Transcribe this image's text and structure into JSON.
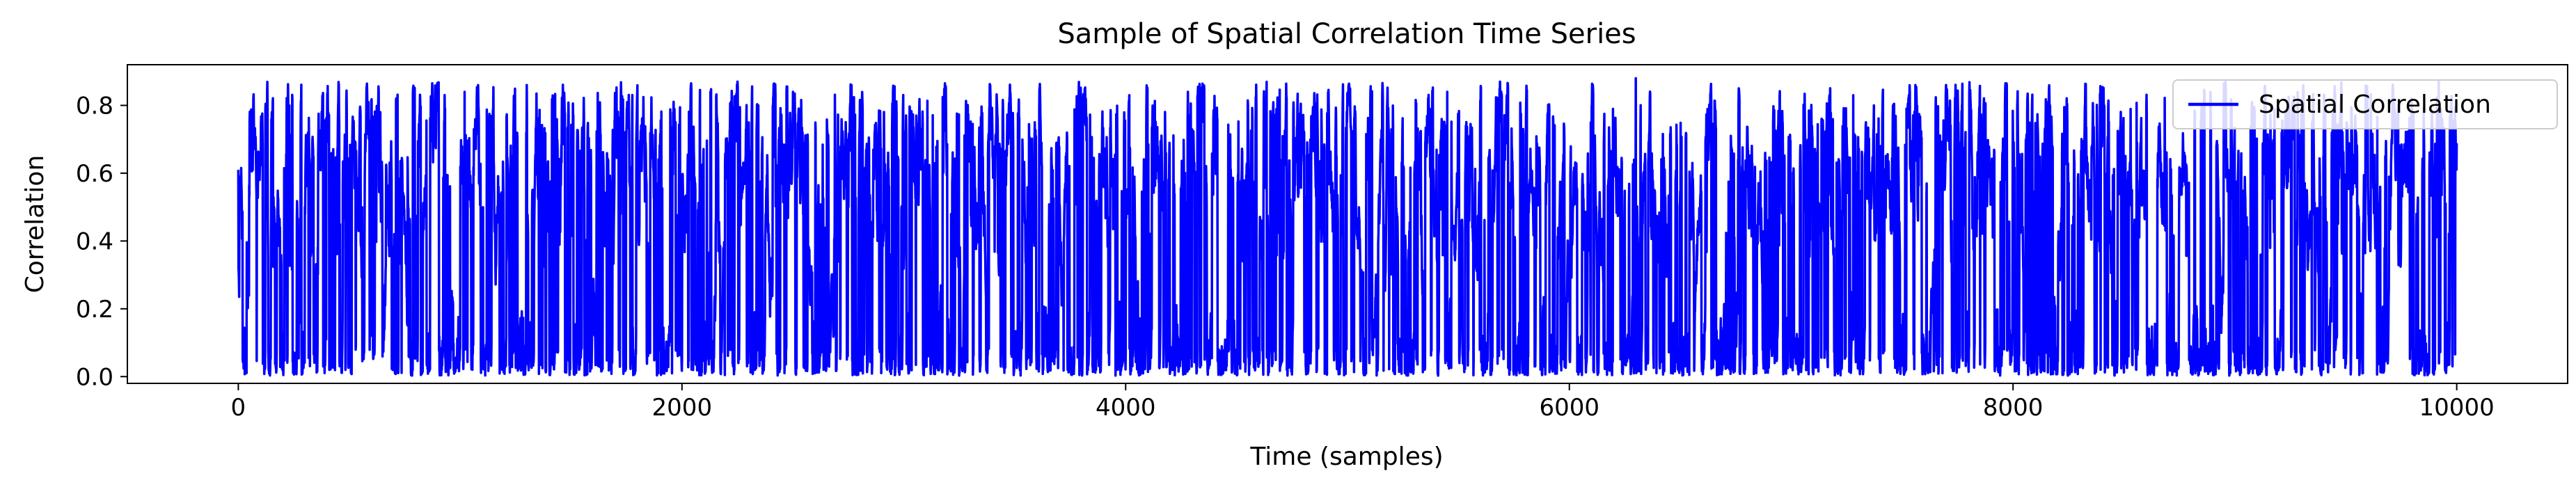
{
  "chart_data": {
    "type": "line",
    "title": "Sample of Spatial Correlation Time Series",
    "xlabel": "Time (samples)",
    "ylabel": "Correlation",
    "xlim": [
      -500,
      10500
    ],
    "ylim": [
      -0.02,
      0.92
    ],
    "x_ticks": [
      0,
      2000,
      4000,
      6000,
      8000,
      10000
    ],
    "x_tick_labels": [
      "0",
      "2000",
      "4000",
      "6000",
      "8000",
      "10000"
    ],
    "y_ticks": [
      0.0,
      0.2,
      0.4,
      0.6,
      0.8
    ],
    "y_tick_labels": [
      "0.0",
      "0.2",
      "0.4",
      "0.6",
      "0.8"
    ],
    "grid": false,
    "legend_position": "top-right",
    "series": [
      {
        "name": "Spatial Correlation",
        "color": "#0000ff",
        "x_range": [
          0,
          10000
        ],
        "n_points": 10000,
        "typical_min": 0.0,
        "typical_max": 0.87,
        "mean_level": 0.3,
        "peaks": [
          {
            "x": 0,
            "y": 0.61
          },
          {
            "x": 230,
            "y": 0.8
          },
          {
            "x": 640,
            "y": 0.78
          },
          {
            "x": 1020,
            "y": 0.84
          },
          {
            "x": 1300,
            "y": 0.86
          },
          {
            "x": 2500,
            "y": 0.84
          },
          {
            "x": 3810,
            "y": 0.83
          },
          {
            "x": 4280,
            "y": 0.84
          },
          {
            "x": 5450,
            "y": 0.84
          },
          {
            "x": 6300,
            "y": 0.88
          },
          {
            "x": 7280,
            "y": 0.83
          },
          {
            "x": 7560,
            "y": 0.86
          },
          {
            "x": 9300,
            "y": 0.81
          },
          {
            "x": 9950,
            "y": 0.51
          }
        ]
      }
    ]
  }
}
